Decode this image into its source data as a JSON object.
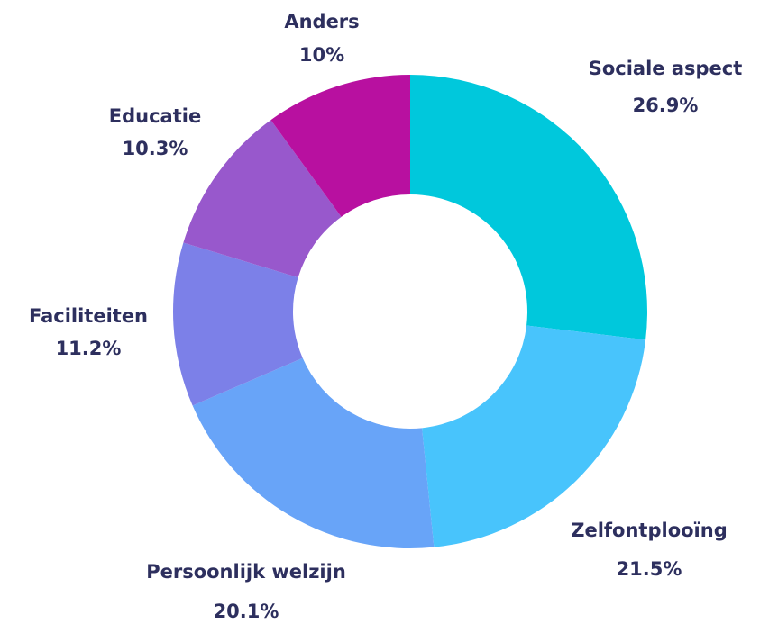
{
  "chart_data": {
    "type": "donut",
    "categories": [
      "Sociale aspect",
      "Zelfontplooïng",
      "Persoonlijk welzijn",
      "Faciliteiten",
      "Educatie",
      "Anders"
    ],
    "values": [
      26.9,
      21.5,
      20.1,
      11.2,
      10.3,
      10
    ],
    "value_labels": [
      "26.9%",
      "21.5%",
      "20.1%",
      "11.2%",
      "10.3%",
      "10%"
    ],
    "colors": [
      "#00c8dc",
      "#48c4fc",
      "#68a4f8",
      "#7c80e8",
      "#9858cc",
      "#b810a0"
    ]
  }
}
